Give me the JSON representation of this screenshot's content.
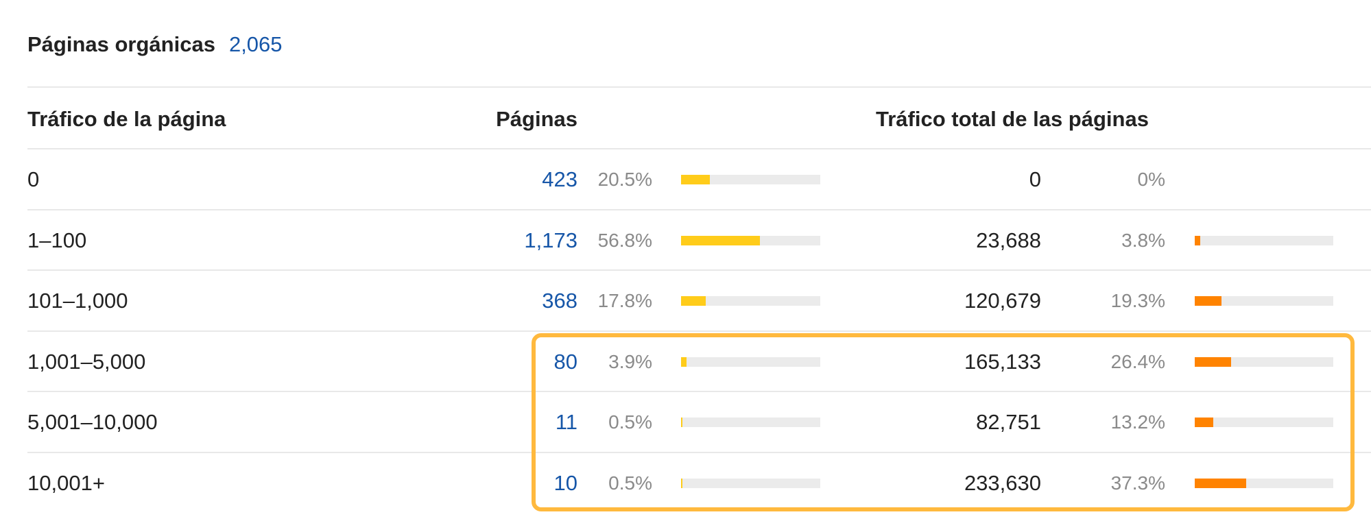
{
  "title": {
    "label": "Páginas orgánicas",
    "count": "2,065"
  },
  "headers": {
    "range": "Tráfico de la página",
    "pages": "Páginas",
    "total_traffic": "Tráfico total de las páginas"
  },
  "rows": [
    {
      "range": "0",
      "pages": "423",
      "pages_pct": "20.5%",
      "pages_share": 20.5,
      "traffic": "0",
      "traffic_pct": "0%",
      "traffic_share": 0
    },
    {
      "range": "1–100",
      "pages": "1,173",
      "pages_pct": "56.8%",
      "pages_share": 56.8,
      "traffic": "23,688",
      "traffic_pct": "3.8%",
      "traffic_share": 3.8
    },
    {
      "range": "101–1,000",
      "pages": "368",
      "pages_pct": "17.8%",
      "pages_share": 17.8,
      "traffic": "120,679",
      "traffic_pct": "19.3%",
      "traffic_share": 19.3
    },
    {
      "range": "1,001–5,000",
      "pages": "80",
      "pages_pct": "3.9%",
      "pages_share": 3.9,
      "traffic": "165,133",
      "traffic_pct": "26.4%",
      "traffic_share": 26.4
    },
    {
      "range": "5,001–10,000",
      "pages": "11",
      "pages_pct": "0.5%",
      "pages_share": 0.5,
      "traffic": "82,751",
      "traffic_pct": "13.2%",
      "traffic_share": 13.2
    },
    {
      "range": "10,001+",
      "pages": "10",
      "pages_pct": "0.5%",
      "pages_share": 0.5,
      "traffic": "233,630",
      "traffic_pct": "37.3%",
      "traffic_share": 37.3
    }
  ],
  "colors": {
    "link": "#1656a8",
    "pages_bar": "#ffcc1a",
    "traffic_bar": "#ff8300",
    "bar_track": "#ebebeb",
    "highlight": "#ffb93e"
  }
}
